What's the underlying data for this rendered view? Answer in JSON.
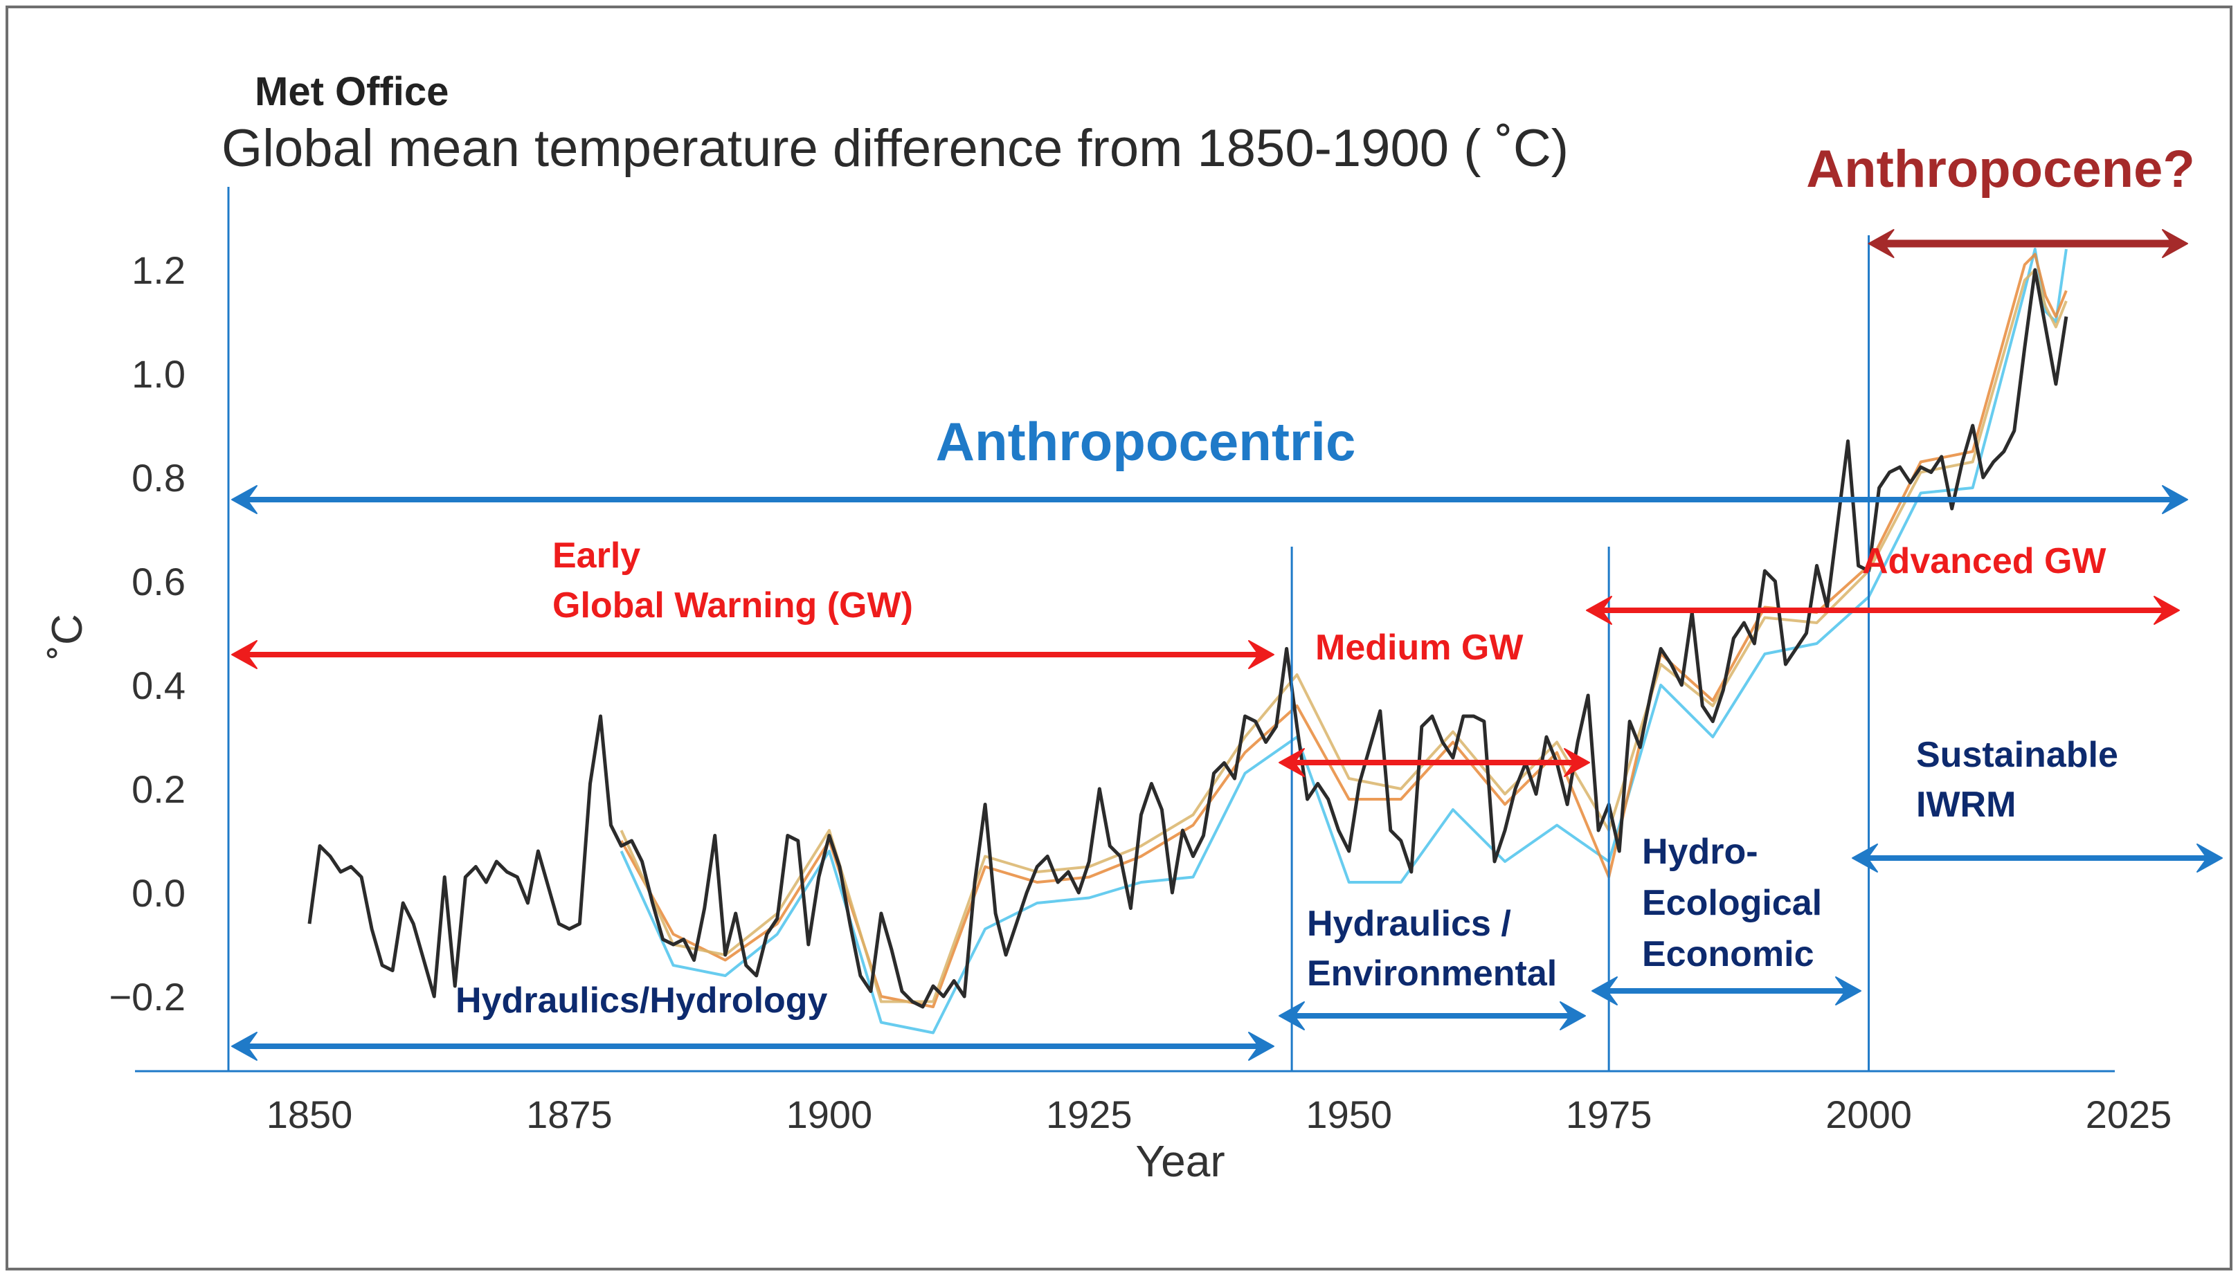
{
  "source_label": "Met Office",
  "colors": {
    "blue": "#1f7ac8",
    "red": "#ee1c1c",
    "darkred": "#a52a2a",
    "navy": "#0d2a6e",
    "axis": "#1f7ac8",
    "series_black": "#2b2b2b",
    "series_lightblue": "#4cc3ec",
    "series_orange": "#e8893a",
    "series_tan": "#d9b46a"
  },
  "chart_data": {
    "type": "line",
    "title": "Global mean temperature difference from 1850-1900 ( ˚C)",
    "xlabel": "Year",
    "ylabel": "˚C",
    "xlim": [
      1842,
      2038
    ],
    "ylim": [
      -0.35,
      1.3
    ],
    "xticks": [
      1850,
      1875,
      1900,
      1925,
      1950,
      1975,
      2000,
      2025
    ],
    "xtick_labels": [
      "1850",
      "1875",
      "1900",
      "1925",
      "1950",
      "1975",
      "2000",
      "2025"
    ],
    "yticks": [
      -0.2,
      0.0,
      0.2,
      0.4,
      0.6,
      0.8,
      1.0,
      1.2
    ],
    "ytick_labels": [
      "−0.2",
      "0.0",
      "0.2",
      "0.4",
      "0.6",
      "0.8",
      "1.0",
      "1.2"
    ],
    "grid": false,
    "legend": "none",
    "series": [
      {
        "color": "#2b2b2b",
        "x": [
          1850,
          1851,
          1852,
          1853,
          1854,
          1855,
          1856,
          1857,
          1858,
          1859,
          1860,
          1861,
          1862,
          1863,
          1864,
          1865,
          1866,
          1867,
          1868,
          1869,
          1870,
          1871,
          1872,
          1873,
          1874,
          1875,
          1876,
          1877,
          1878,
          1879,
          1880,
          1881,
          1882,
          1883,
          1884,
          1885,
          1886,
          1887,
          1888,
          1889,
          1890,
          1891,
          1892,
          1893,
          1894,
          1895,
          1896,
          1897,
          1898,
          1899,
          1900,
          1901,
          1902,
          1903,
          1904,
          1905,
          1906,
          1907,
          1908,
          1909,
          1910,
          1911,
          1912,
          1913,
          1914,
          1915,
          1916,
          1917,
          1918,
          1919,
          1920,
          1921,
          1922,
          1923,
          1924,
          1925,
          1926,
          1927,
          1928,
          1929,
          1930,
          1931,
          1932,
          1933,
          1934,
          1935,
          1936,
          1937,
          1938,
          1939,
          1940,
          1941,
          1942,
          1943,
          1944,
          1945,
          1946,
          1947,
          1948,
          1949,
          1950,
          1951,
          1952,
          1953,
          1954,
          1955,
          1956,
          1957,
          1958,
          1959,
          1960,
          1961,
          1962,
          1963,
          1964,
          1965,
          1966,
          1967,
          1968,
          1969,
          1970,
          1971,
          1972,
          1973,
          1974,
          1975,
          1976,
          1977,
          1978,
          1979,
          1980,
          1981,
          1982,
          1983,
          1984,
          1985,
          1986,
          1987,
          1988,
          1989,
          1990,
          1991,
          1992,
          1993,
          1994,
          1995,
          1996,
          1997,
          1998,
          1999,
          2000,
          2001,
          2002,
          2003,
          2004,
          2005,
          2006,
          2007,
          2008,
          2009,
          2010,
          2011,
          2012,
          2013,
          2014,
          2015,
          2016,
          2017,
          2018,
          2019
        ],
        "y": [
          -0.06,
          0.09,
          0.07,
          0.04,
          0.05,
          0.03,
          -0.07,
          -0.14,
          -0.15,
          -0.02,
          -0.06,
          -0.13,
          -0.2,
          0.03,
          -0.18,
          0.03,
          0.05,
          0.02,
          0.06,
          0.04,
          0.03,
          -0.02,
          0.08,
          0.01,
          -0.06,
          -0.07,
          -0.06,
          0.21,
          0.34,
          0.13,
          0.09,
          0.1,
          0.06,
          -0.02,
          -0.09,
          -0.1,
          -0.09,
          -0.13,
          -0.03,
          0.11,
          -0.12,
          -0.04,
          -0.14,
          -0.16,
          -0.08,
          -0.05,
          0.11,
          0.1,
          -0.1,
          0.03,
          0.11,
          0.05,
          -0.06,
          -0.16,
          -0.19,
          -0.04,
          -0.11,
          -0.19,
          -0.21,
          -0.22,
          -0.18,
          -0.2,
          -0.17,
          -0.2,
          0.02,
          0.17,
          -0.04,
          -0.12,
          -0.06,
          0.0,
          0.05,
          0.07,
          0.02,
          0.04,
          0.0,
          0.06,
          0.2,
          0.09,
          0.07,
          -0.03,
          0.15,
          0.21,
          0.16,
          0.0,
          0.12,
          0.07,
          0.11,
          0.23,
          0.25,
          0.22,
          0.34,
          0.33,
          0.29,
          0.32,
          0.47,
          0.32,
          0.18,
          0.21,
          0.18,
          0.12,
          0.08,
          0.21,
          0.28,
          0.35,
          0.12,
          0.1,
          0.04,
          0.32,
          0.34,
          0.29,
          0.26,
          0.34,
          0.34,
          0.33,
          0.06,
          0.12,
          0.2,
          0.25,
          0.19,
          0.3,
          0.25,
          0.17,
          0.29,
          0.38,
          0.12,
          0.17,
          0.08,
          0.33,
          0.28,
          0.38,
          0.47,
          0.44,
          0.4,
          0.54,
          0.36,
          0.33,
          0.39,
          0.49,
          0.52,
          0.48,
          0.62,
          0.6,
          0.44,
          0.47,
          0.5,
          0.63,
          0.55,
          0.71,
          0.87,
          0.63,
          0.62,
          0.78,
          0.81,
          0.82,
          0.79,
          0.82,
          0.81,
          0.84,
          0.74,
          0.83,
          0.9,
          0.8,
          0.83,
          0.85,
          0.89,
          1.05,
          1.2,
          1.09,
          0.98,
          1.11
        ]
      },
      {
        "color": "#4cc3ec",
        "x": [
          1880,
          1885,
          1890,
          1895,
          1900,
          1905,
          1910,
          1915,
          1920,
          1925,
          1930,
          1935,
          1940,
          1945,
          1950,
          1955,
          1960,
          1965,
          1970,
          1975,
          1980,
          1985,
          1990,
          1995,
          2000,
          2005,
          2010,
          2015,
          2016,
          2017,
          2018,
          2019
        ],
        "y": [
          0.08,
          -0.14,
          -0.16,
          -0.08,
          0.08,
          -0.25,
          -0.27,
          -0.07,
          -0.02,
          -0.01,
          0.02,
          0.03,
          0.23,
          0.3,
          0.02,
          0.02,
          0.16,
          0.06,
          0.13,
          0.06,
          0.4,
          0.3,
          0.46,
          0.48,
          0.57,
          0.77,
          0.78,
          1.16,
          1.24,
          1.12,
          1.1,
          1.24
        ]
      },
      {
        "color": "#e8893a",
        "x": [
          1880,
          1885,
          1890,
          1895,
          1900,
          1905,
          1910,
          1915,
          1920,
          1925,
          1930,
          1935,
          1940,
          1945,
          1950,
          1955,
          1960,
          1965,
          1970,
          1975,
          1980,
          1985,
          1990,
          1995,
          2000,
          2005,
          2010,
          2015,
          2016,
          2017,
          2018,
          2019
        ],
        "y": [
          0.1,
          -0.08,
          -0.13,
          -0.06,
          0.1,
          -0.2,
          -0.22,
          0.05,
          0.02,
          0.03,
          0.07,
          0.13,
          0.27,
          0.36,
          0.18,
          0.18,
          0.29,
          0.17,
          0.27,
          0.03,
          0.46,
          0.37,
          0.55,
          0.54,
          0.63,
          0.83,
          0.85,
          1.21,
          1.23,
          1.15,
          1.11,
          1.16
        ]
      },
      {
        "color": "#d9b46a",
        "x": [
          1880,
          1885,
          1890,
          1895,
          1900,
          1905,
          1910,
          1915,
          1920,
          1925,
          1930,
          1935,
          1940,
          1945,
          1950,
          1955,
          1960,
          1965,
          1970,
          1975,
          1980,
          1985,
          1990,
          1995,
          2000,
          2005,
          2010,
          2015,
          2016,
          2017,
          2018,
          2019
        ],
        "y": [
          0.12,
          -0.1,
          -0.12,
          -0.04,
          0.12,
          -0.21,
          -0.21,
          0.07,
          0.04,
          0.05,
          0.09,
          0.15,
          0.3,
          0.42,
          0.22,
          0.2,
          0.31,
          0.19,
          0.29,
          0.12,
          0.44,
          0.36,
          0.53,
          0.52,
          0.62,
          0.81,
          0.83,
          1.18,
          1.2,
          1.13,
          1.09,
          1.14
        ]
      }
    ]
  },
  "annotations": {
    "anthropocene": "Anthropocene?",
    "anthropocentric": "Anthropocentric",
    "early_gw_line1": "Early",
    "early_gw_line2": "Global Warning (GW)",
    "medium_gw": "Medium  GW",
    "advanced_gw": "Advanced  GW",
    "hydraulics_hydrology": "Hydraulics/Hydrology",
    "hydraulics_env_line1": "Hydraulics /",
    "hydraulics_env_line2": "Environmental",
    "hydro_eco_line1": "Hydro-",
    "hydro_eco_line2": "Ecological",
    "hydro_eco_line3": "Economic",
    "sustainable_line1": "Sustainable",
    "sustainable_line2": "IWRM"
  }
}
